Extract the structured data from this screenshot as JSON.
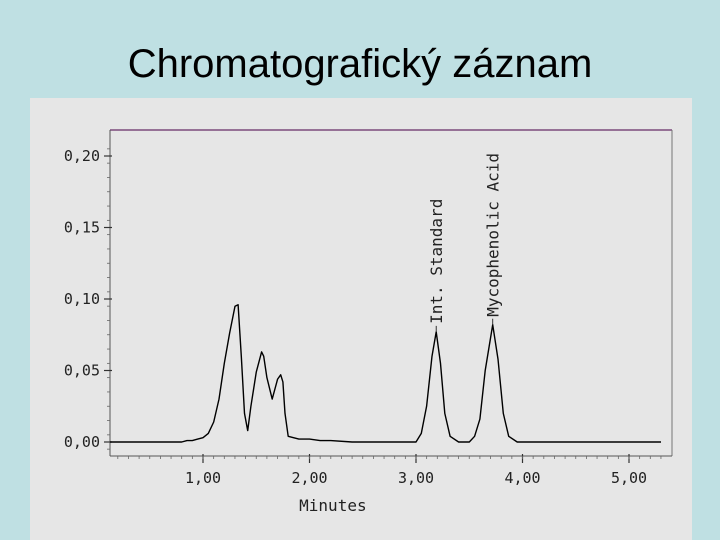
{
  "slide": {
    "title": "Chromatografický záznam"
  },
  "chart_data": {
    "type": "line",
    "title": "",
    "xlabel": "Minutes",
    "ylabel": "",
    "xlim": [
      0.0,
      5.3
    ],
    "ylim": [
      -0.01,
      0.22
    ],
    "x_ticks": [
      {
        "value": 1.0,
        "label": "1,00"
      },
      {
        "value": 2.0,
        "label": "2,00"
      },
      {
        "value": 3.0,
        "label": "3,00"
      },
      {
        "value": 4.0,
        "label": "4,00"
      },
      {
        "value": 5.0,
        "label": "5,00"
      }
    ],
    "y_ticks": [
      {
        "value": 0.0,
        "label": "0,00"
      },
      {
        "value": 0.05,
        "label": "0,05"
      },
      {
        "value": 0.1,
        "label": "0,10"
      },
      {
        "value": 0.15,
        "label": "0,15"
      },
      {
        "value": 0.2,
        "label": "0,20"
      }
    ],
    "annotations": [
      {
        "text": "Int. Standard",
        "x": 3.19,
        "y": 0.077
      },
      {
        "text": "Mycophenolic Acid",
        "x": 3.72,
        "y": 0.082
      }
    ],
    "series": [
      {
        "x": [
          0.0,
          0.8,
          0.85,
          0.9,
          0.95,
          1.0,
          1.05,
          1.1,
          1.15,
          1.2,
          1.25,
          1.3,
          1.33,
          1.36,
          1.39,
          1.42,
          1.45,
          1.5,
          1.55,
          1.57,
          1.6,
          1.65,
          1.7,
          1.73,
          1.75,
          1.77,
          1.8,
          1.85,
          1.9,
          2.0,
          2.1,
          2.2,
          2.4,
          3.0,
          3.05,
          3.1,
          3.15,
          3.19,
          3.23,
          3.27,
          3.32,
          3.4,
          3.5,
          3.55,
          3.6,
          3.65,
          3.72,
          3.77,
          3.82,
          3.87,
          3.95,
          4.1,
          5.3
        ],
        "y": [
          0.0,
          0.0,
          0.001,
          0.001,
          0.002,
          0.003,
          0.006,
          0.014,
          0.03,
          0.055,
          0.076,
          0.095,
          0.096,
          0.06,
          0.02,
          0.008,
          0.025,
          0.049,
          0.063,
          0.06,
          0.045,
          0.03,
          0.044,
          0.047,
          0.042,
          0.02,
          0.004,
          0.003,
          0.002,
          0.002,
          0.001,
          0.001,
          0.0,
          0.0,
          0.006,
          0.025,
          0.06,
          0.077,
          0.055,
          0.02,
          0.004,
          0.0,
          0.0,
          0.004,
          0.016,
          0.05,
          0.082,
          0.058,
          0.02,
          0.004,
          0.0,
          0.0,
          0.0
        ]
      }
    ],
    "grid": false,
    "line_color": "#000000"
  }
}
